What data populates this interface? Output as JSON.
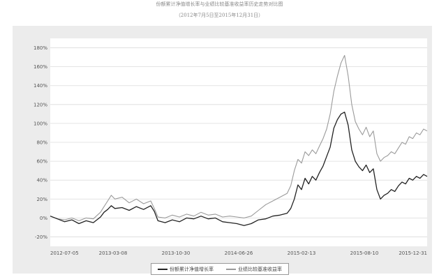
{
  "title_line1": "份额累计净值增长率与业绩比较基准收益率历史走势对比图",
  "title_line2": "（2012年7月5日至2015年12月31日）",
  "chart_data": {
    "type": "line",
    "title": "份额累计净值增长率与业绩比较基准收益率历史走势对比图",
    "subtitle": "（2012年7月5日至2015年12月31日）",
    "xlabel": "",
    "ylabel": "",
    "y_unit": "%",
    "ylim": [
      -30,
      190
    ],
    "yticks": [
      -20,
      0,
      20,
      40,
      60,
      80,
      100,
      120,
      140,
      160,
      180
    ],
    "xticks_labels": [
      "2012-07-05",
      "2013-03-08",
      "2013-10-30",
      "2014-06-26",
      "2015-02-13",
      "2015-08-10",
      "2015-12-31"
    ],
    "grid": true,
    "legend_position": "bottom-center",
    "legend_labels": [
      "份额累计净值增长率",
      "业绩比较基准收益率"
    ],
    "colors": [
      "#222222",
      "#9a9a9a"
    ],
    "series": [
      {
        "name": "份额累计净值增长率",
        "points": [
          [
            0,
            2
          ],
          [
            4,
            -1
          ],
          [
            8,
            -4
          ],
          [
            12,
            -2
          ],
          [
            16,
            -6
          ],
          [
            20,
            -3
          ],
          [
            24,
            -5
          ],
          [
            28,
            1
          ],
          [
            30,
            6
          ],
          [
            32,
            9
          ],
          [
            34,
            13
          ],
          [
            36,
            10
          ],
          [
            40,
            11
          ],
          [
            44,
            8
          ],
          [
            48,
            12
          ],
          [
            52,
            9
          ],
          [
            56,
            13
          ],
          [
            58,
            7
          ],
          [
            60,
            -3
          ],
          [
            64,
            -5
          ],
          [
            68,
            -2
          ],
          [
            72,
            -4
          ],
          [
            76,
            0
          ],
          [
            80,
            -1
          ],
          [
            84,
            2
          ],
          [
            88,
            -1
          ],
          [
            92,
            0
          ],
          [
            96,
            -4
          ],
          [
            100,
            -5
          ],
          [
            104,
            -6
          ],
          [
            108,
            -8
          ],
          [
            112,
            -6
          ],
          [
            116,
            -2
          ],
          [
            120,
            -1
          ],
          [
            124,
            2
          ],
          [
            128,
            3
          ],
          [
            132,
            5
          ],
          [
            134,
            10
          ],
          [
            136,
            20
          ],
          [
            138,
            35
          ],
          [
            140,
            30
          ],
          [
            142,
            42
          ],
          [
            144,
            36
          ],
          [
            146,
            44
          ],
          [
            148,
            40
          ],
          [
            150,
            48
          ],
          [
            152,
            55
          ],
          [
            154,
            65
          ],
          [
            156,
            75
          ],
          [
            158,
            95
          ],
          [
            160,
            104
          ],
          [
            162,
            110
          ],
          [
            164,
            112
          ],
          [
            166,
            98
          ],
          [
            168,
            72
          ],
          [
            170,
            60
          ],
          [
            172,
            54
          ],
          [
            174,
            50
          ],
          [
            176,
            56
          ],
          [
            178,
            48
          ],
          [
            180,
            52
          ],
          [
            182,
            30
          ],
          [
            184,
            20
          ],
          [
            186,
            24
          ],
          [
            188,
            26
          ],
          [
            190,
            30
          ],
          [
            192,
            28
          ],
          [
            194,
            34
          ],
          [
            196,
            38
          ],
          [
            198,
            36
          ],
          [
            200,
            42
          ],
          [
            202,
            40
          ],
          [
            204,
            44
          ],
          [
            206,
            42
          ],
          [
            208,
            46
          ],
          [
            210,
            44
          ]
        ]
      },
      {
        "name": "业绩比较基准收益率",
        "points": [
          [
            0,
            2
          ],
          [
            4,
            -1
          ],
          [
            8,
            -2
          ],
          [
            12,
            0
          ],
          [
            16,
            -3
          ],
          [
            20,
            0
          ],
          [
            24,
            -1
          ],
          [
            28,
            6
          ],
          [
            30,
            12
          ],
          [
            32,
            18
          ],
          [
            34,
            24
          ],
          [
            36,
            20
          ],
          [
            40,
            22
          ],
          [
            44,
            16
          ],
          [
            48,
            20
          ],
          [
            52,
            15
          ],
          [
            56,
            18
          ],
          [
            58,
            10
          ],
          [
            60,
            1
          ],
          [
            64,
            0
          ],
          [
            68,
            3
          ],
          [
            72,
            1
          ],
          [
            76,
            4
          ],
          [
            80,
            2
          ],
          [
            84,
            6
          ],
          [
            88,
            3
          ],
          [
            92,
            4
          ],
          [
            96,
            1
          ],
          [
            100,
            2
          ],
          [
            104,
            1
          ],
          [
            108,
            0
          ],
          [
            112,
            2
          ],
          [
            116,
            8
          ],
          [
            120,
            14
          ],
          [
            124,
            18
          ],
          [
            128,
            22
          ],
          [
            132,
            26
          ],
          [
            134,
            34
          ],
          [
            136,
            50
          ],
          [
            138,
            62
          ],
          [
            140,
            58
          ],
          [
            142,
            70
          ],
          [
            144,
            66
          ],
          [
            146,
            72
          ],
          [
            148,
            68
          ],
          [
            150,
            76
          ],
          [
            152,
            84
          ],
          [
            154,
            94
          ],
          [
            156,
            110
          ],
          [
            158,
            134
          ],
          [
            160,
            150
          ],
          [
            162,
            164
          ],
          [
            164,
            172
          ],
          [
            166,
            150
          ],
          [
            168,
            120
          ],
          [
            170,
            102
          ],
          [
            172,
            94
          ],
          [
            174,
            88
          ],
          [
            176,
            96
          ],
          [
            178,
            86
          ],
          [
            180,
            92
          ],
          [
            182,
            68
          ],
          [
            184,
            60
          ],
          [
            186,
            64
          ],
          [
            188,
            66
          ],
          [
            190,
            70
          ],
          [
            192,
            68
          ],
          [
            194,
            74
          ],
          [
            196,
            80
          ],
          [
            198,
            78
          ],
          [
            200,
            86
          ],
          [
            202,
            84
          ],
          [
            204,
            90
          ],
          [
            206,
            88
          ],
          [
            208,
            94
          ],
          [
            210,
            92
          ]
        ]
      }
    ]
  }
}
